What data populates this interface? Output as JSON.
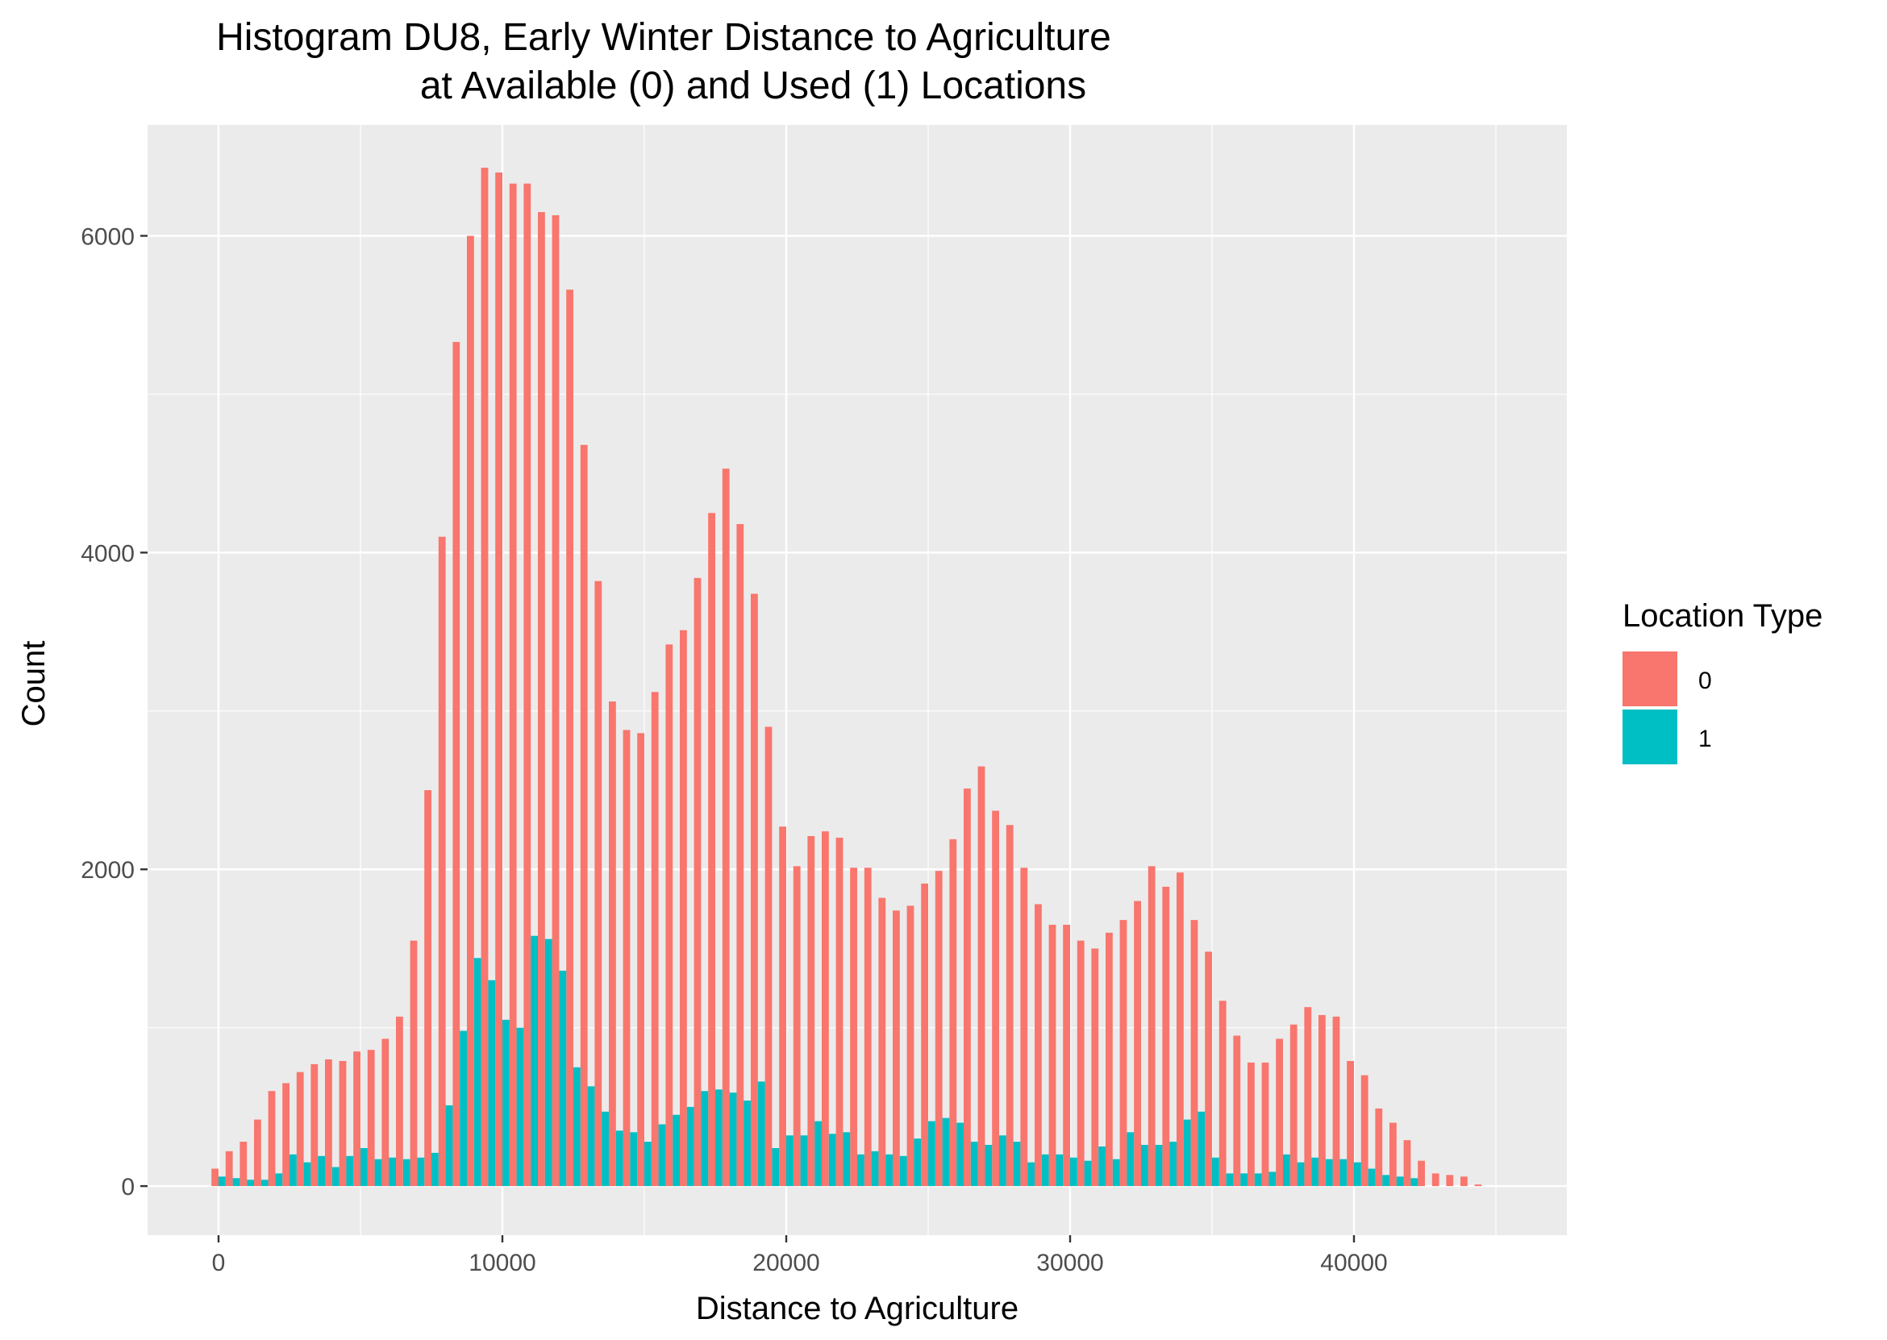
{
  "chart_data": {
    "type": "bar",
    "title_line1": "Histogram DU8, Early Winter Distance to Agriculture",
    "title_line2": "at Available (0) and Used (1) Locations",
    "xlabel": "Distance to Agriculture",
    "ylabel": "Count",
    "xlim": [
      -2500,
      47500
    ],
    "ylim": [
      -310,
      6700
    ],
    "x_ticks": [
      0,
      10000,
      20000,
      30000,
      40000
    ],
    "y_ticks": [
      0,
      2000,
      4000,
      6000
    ],
    "grid": true,
    "legend": {
      "title": "Location Type",
      "position": "right"
    },
    "bin_start": 0,
    "bin_width": 500,
    "series": [
      {
        "name": "0",
        "color": "#F8766D",
        "values": [
          110,
          220,
          280,
          420,
          600,
          650,
          720,
          770,
          800,
          790,
          850,
          860,
          930,
          1070,
          1550,
          2500,
          4100,
          5330,
          6000,
          6430,
          6400,
          6330,
          6330,
          6150,
          6130,
          5660,
          4680,
          3820,
          3060,
          2880,
          2860,
          3120,
          3420,
          3510,
          3840,
          4250,
          4530,
          4180,
          3740,
          2900,
          2270,
          2020,
          2210,
          2240,
          2200,
          2010,
          2010,
          1820,
          1740,
          1770,
          1910,
          1990,
          2190,
          2510,
          2650,
          2370,
          2280,
          2010,
          1780,
          1650,
          1650,
          1550,
          1500,
          1600,
          1680,
          1800,
          2020,
          1890,
          1980,
          1680,
          1480,
          1170,
          950,
          780,
          780,
          930,
          1020,
          1130,
          1080,
          1070,
          790,
          700,
          490,
          400,
          290,
          160,
          80,
          70,
          60,
          10
        ]
      },
      {
        "name": "1",
        "color": "#00BFC4",
        "values": [
          60,
          50,
          40,
          40,
          80,
          200,
          150,
          190,
          120,
          190,
          240,
          170,
          180,
          170,
          180,
          210,
          510,
          980,
          1440,
          1300,
          1050,
          1000,
          1580,
          1560,
          1360,
          750,
          630,
          470,
          350,
          340,
          280,
          390,
          450,
          500,
          600,
          610,
          590,
          540,
          660,
          240,
          320,
          320,
          410,
          330,
          340,
          200,
          220,
          200,
          190,
          300,
          410,
          430,
          400,
          280,
          260,
          320,
          280,
          150,
          200,
          200,
          180,
          160,
          250,
          170,
          340,
          260,
          260,
          280,
          420,
          470,
          180,
          80,
          80,
          80,
          90,
          200,
          150,
          180,
          170,
          170,
          150,
          110,
          70,
          60,
          50,
          0,
          0,
          0,
          0,
          0
        ]
      }
    ]
  }
}
